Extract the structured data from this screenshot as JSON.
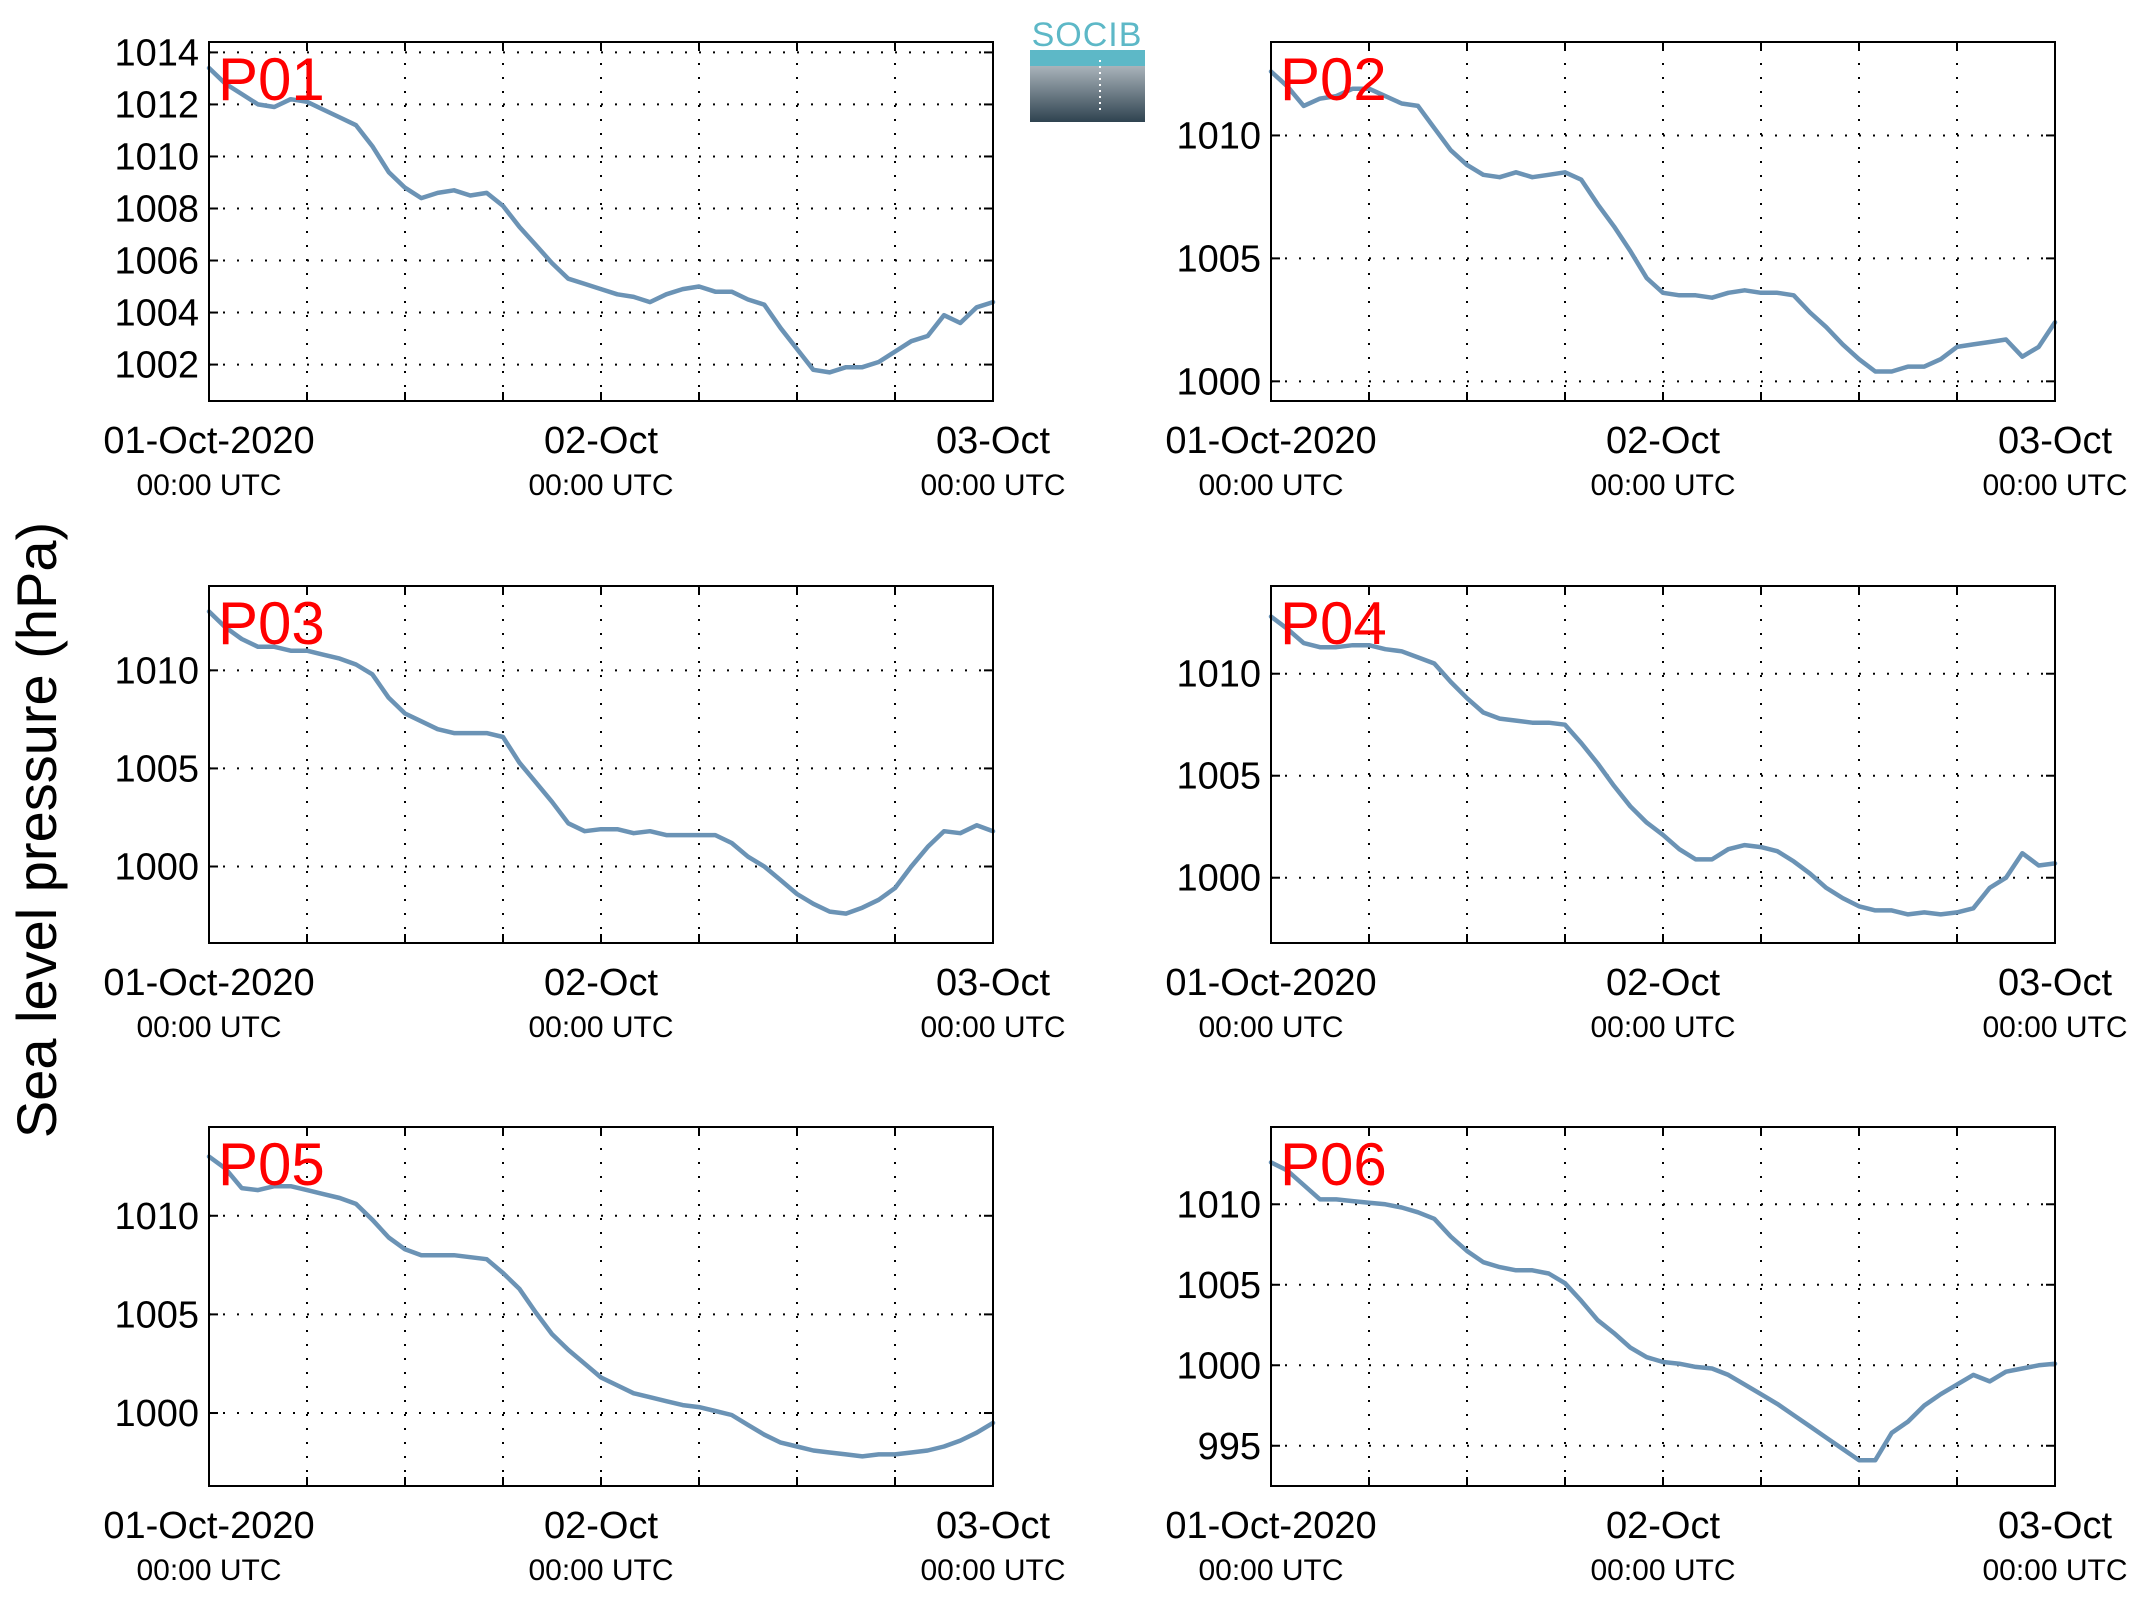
{
  "figure": {
    "ylabel": "Sea level pressure (hPa)",
    "logo": {
      "text": "SOCIB",
      "colors": {
        "text": "#5db8c7",
        "top": "#a9b3ba",
        "bottom": "#2f4350"
      }
    },
    "line_color": "#6b93b5",
    "label_color": "#ff0000"
  },
  "chart_data": [
    {
      "type": "line",
      "title": "P01",
      "x_ticks": [
        {
          "main": "01-Oct-2020",
          "sub": "00:00 UTC",
          "hour": 0
        },
        {
          "main": "02-Oct",
          "sub": "00:00 UTC",
          "hour": 24
        },
        {
          "main": "03-Oct",
          "sub": "00:00 UTC",
          "hour": 48
        }
      ],
      "x_gridlines_hours": [
        6,
        12,
        18,
        24,
        30,
        36,
        42
      ],
      "xlim_hours": [
        0,
        48
      ],
      "ylim": [
        1000.6,
        1014.4
      ],
      "yticks": [
        1002,
        1004,
        1006,
        1008,
        1010,
        1012,
        1014
      ],
      "x_hours": [
        0,
        1,
        2,
        3,
        4,
        5,
        6,
        7,
        8,
        9,
        10,
        11,
        12,
        13,
        14,
        15,
        16,
        17,
        18,
        19,
        20,
        21,
        22,
        23,
        24,
        25,
        26,
        27,
        28,
        29,
        30,
        31,
        32,
        33,
        34,
        35,
        36,
        37,
        38,
        39,
        40,
        41,
        42,
        43,
        44,
        45,
        46,
        47,
        48
      ],
      "values": [
        1013.4,
        1012.8,
        1012.4,
        1012.0,
        1011.9,
        1012.2,
        1012.1,
        1011.8,
        1011.5,
        1011.2,
        1010.4,
        1009.4,
        1008.8,
        1008.4,
        1008.6,
        1008.7,
        1008.5,
        1008.6,
        1008.1,
        1007.3,
        1006.6,
        1005.9,
        1005.3,
        1005.1,
        1004.9,
        1004.7,
        1004.6,
        1004.4,
        1004.7,
        1004.9,
        1005.0,
        1004.8,
        1004.8,
        1004.5,
        1004.3,
        1003.4,
        1002.6,
        1001.8,
        1001.7,
        1001.9,
        1001.9,
        1002.1,
        1002.5,
        1002.9,
        1003.1,
        1003.9,
        1003.6,
        1004.2,
        1004.4
      ]
    },
    {
      "type": "line",
      "title": "P02",
      "x_ticks": [
        {
          "main": "01-Oct-2020",
          "sub": "00:00 UTC",
          "hour": 0
        },
        {
          "main": "02-Oct",
          "sub": "00:00 UTC",
          "hour": 24
        },
        {
          "main": "03-Oct",
          "sub": "00:00 UTC",
          "hour": 48
        }
      ],
      "x_gridlines_hours": [
        6,
        12,
        18,
        24,
        30,
        36,
        42
      ],
      "xlim_hours": [
        0,
        48
      ],
      "ylim": [
        999.2,
        1013.8
      ],
      "yticks": [
        1000,
        1005,
        1010
      ],
      "x_hours": [
        0,
        1,
        2,
        3,
        4,
        5,
        6,
        7,
        8,
        9,
        10,
        11,
        12,
        13,
        14,
        15,
        16,
        17,
        18,
        19,
        20,
        21,
        22,
        23,
        24,
        25,
        26,
        27,
        28,
        29,
        30,
        31,
        32,
        33,
        34,
        35,
        36,
        37,
        38,
        39,
        40,
        41,
        42,
        43,
        44,
        45,
        46,
        47,
        48
      ],
      "values": [
        1012.6,
        1012.0,
        1011.2,
        1011.5,
        1011.6,
        1011.9,
        1011.9,
        1011.6,
        1011.3,
        1011.2,
        1010.3,
        1009.4,
        1008.8,
        1008.4,
        1008.3,
        1008.5,
        1008.3,
        1008.4,
        1008.5,
        1008.2,
        1007.2,
        1006.3,
        1005.3,
        1004.2,
        1003.6,
        1003.5,
        1003.5,
        1003.4,
        1003.6,
        1003.7,
        1003.6,
        1003.6,
        1003.5,
        1002.8,
        1002.2,
        1001.5,
        1000.9,
        1000.4,
        1000.4,
        1000.6,
        1000.6,
        1000.9,
        1001.4,
        1001.5,
        1001.6,
        1001.7,
        1001.0,
        1001.4,
        1002.4
      ]
    },
    {
      "type": "line",
      "title": "P03",
      "x_ticks": [
        {
          "main": "01-Oct-2020",
          "sub": "00:00 UTC",
          "hour": 0
        },
        {
          "main": "02-Oct",
          "sub": "00:00 UTC",
          "hour": 24
        },
        {
          "main": "03-Oct",
          "sub": "00:00 UTC",
          "hour": 48
        }
      ],
      "x_gridlines_hours": [
        6,
        12,
        18,
        24,
        30,
        36,
        42
      ],
      "xlim_hours": [
        0,
        48
      ],
      "ylim": [
        996.1,
        1014.3
      ],
      "yticks": [
        1000,
        1005,
        1010
      ],
      "x_hours": [
        0,
        1,
        2,
        3,
        4,
        5,
        6,
        7,
        8,
        9,
        10,
        11,
        12,
        13,
        14,
        15,
        16,
        17,
        18,
        19,
        20,
        21,
        22,
        23,
        24,
        25,
        26,
        27,
        28,
        29,
        30,
        31,
        32,
        33,
        34,
        35,
        36,
        37,
        38,
        39,
        40,
        41,
        42,
        43,
        44,
        45,
        46,
        47,
        48
      ],
      "values": [
        1013.0,
        1012.2,
        1011.6,
        1011.2,
        1011.2,
        1011.0,
        1011.0,
        1010.8,
        1010.6,
        1010.3,
        1009.8,
        1008.6,
        1007.8,
        1007.4,
        1007.0,
        1006.8,
        1006.8,
        1006.8,
        1006.6,
        1005.3,
        1004.3,
        1003.3,
        1002.2,
        1001.8,
        1001.9,
        1001.9,
        1001.7,
        1001.8,
        1001.6,
        1001.6,
        1001.6,
        1001.6,
        1001.2,
        1000.5,
        1000.0,
        999.3,
        998.6,
        998.1,
        997.7,
        997.6,
        997.9,
        998.3,
        998.9,
        1000.0,
        1001.0,
        1001.8,
        1001.7,
        1002.1,
        1001.8
      ]
    },
    {
      "type": "line",
      "title": "P04",
      "x_ticks": [
        {
          "main": "01-Oct-2020",
          "sub": "00:00 UTC",
          "hour": 0
        },
        {
          "main": "02-Oct",
          "sub": "00:00 UTC",
          "hour": 24
        },
        {
          "main": "03-Oct",
          "sub": "00:00 UTC",
          "hour": 48
        }
      ],
      "x_gridlines_hours": [
        6,
        12,
        18,
        24,
        30,
        36,
        42
      ],
      "xlim_hours": [
        0,
        48
      ],
      "ylim": [
        996.8,
        1014.3
      ],
      "yticks": [
        1000,
        1005,
        1010
      ],
      "x_hours": [
        0,
        1,
        2,
        3,
        4,
        5,
        6,
        7,
        8,
        9,
        10,
        11,
        12,
        13,
        14,
        15,
        16,
        17,
        18,
        19,
        20,
        21,
        22,
        23,
        24,
        25,
        26,
        27,
        28,
        29,
        30,
        31,
        32,
        33,
        34,
        35,
        36,
        37,
        38,
        39,
        40,
        41,
        42,
        43,
        44,
        45,
        46,
        47,
        48
      ],
      "values": [
        1012.8,
        1012.2,
        1011.5,
        1011.3,
        1011.3,
        1011.4,
        1011.4,
        1011.2,
        1011.1,
        1010.8,
        1010.5,
        1009.6,
        1008.8,
        1008.1,
        1007.8,
        1007.7,
        1007.6,
        1007.6,
        1007.5,
        1006.6,
        1005.6,
        1004.5,
        1003.5,
        1002.7,
        1002.1,
        1001.4,
        1000.9,
        1000.9,
        1001.4,
        1001.6,
        1001.5,
        1001.3,
        1000.8,
        1000.2,
        999.5,
        999.0,
        998.6,
        998.4,
        998.4,
        998.2,
        998.3,
        998.2,
        998.3,
        998.5,
        999.5,
        1000.0,
        1001.2,
        1000.6,
        1000.7
      ]
    },
    {
      "type": "line",
      "title": "P05",
      "x_ticks": [
        {
          "main": "01-Oct-2020",
          "sub": "00:00 UTC",
          "hour": 0
        },
        {
          "main": "02-Oct",
          "sub": "00:00 UTC",
          "hour": 24
        },
        {
          "main": "03-Oct",
          "sub": "00:00 UTC",
          "hour": 48
        }
      ],
      "x_gridlines_hours": [
        6,
        12,
        18,
        24,
        30,
        36,
        42
      ],
      "xlim_hours": [
        0,
        48
      ],
      "ylim": [
        996.3,
        1014.5
      ],
      "yticks": [
        1000,
        1005,
        1010
      ],
      "x_hours": [
        0,
        1,
        2,
        3,
        4,
        5,
        6,
        7,
        8,
        9,
        10,
        11,
        12,
        13,
        14,
        15,
        16,
        17,
        18,
        19,
        20,
        21,
        22,
        23,
        24,
        25,
        26,
        27,
        28,
        29,
        30,
        31,
        32,
        33,
        34,
        35,
        36,
        37,
        38,
        39,
        40,
        41,
        42,
        43,
        44,
        45,
        46,
        47,
        48
      ],
      "values": [
        1013.0,
        1012.4,
        1011.4,
        1011.3,
        1011.5,
        1011.5,
        1011.3,
        1011.1,
        1010.9,
        1010.6,
        1009.8,
        1008.9,
        1008.3,
        1008.0,
        1008.0,
        1008.0,
        1007.9,
        1007.8,
        1007.1,
        1006.3,
        1005.1,
        1004.0,
        1003.2,
        1002.5,
        1001.8,
        1001.4,
        1001.0,
        1000.8,
        1000.6,
        1000.4,
        1000.3,
        1000.1,
        999.9,
        999.4,
        998.9,
        998.5,
        998.3,
        998.1,
        998.0,
        997.9,
        997.8,
        997.9,
        997.9,
        998.0,
        998.1,
        998.3,
        998.6,
        999.0,
        999.5
      ]
    },
    {
      "type": "line",
      "title": "P06",
      "x_ticks": [
        {
          "main": "01-Oct-2020",
          "sub": "00:00 UTC",
          "hour": 0
        },
        {
          "main": "02-Oct",
          "sub": "00:00 UTC",
          "hour": 24
        },
        {
          "main": "03-Oct",
          "sub": "00:00 UTC",
          "hour": 48
        }
      ],
      "x_gridlines_hours": [
        6,
        12,
        18,
        24,
        30,
        36,
        42
      ],
      "xlim_hours": [
        0,
        48
      ],
      "ylim": [
        992.5,
        1014.8
      ],
      "yticks": [
        995,
        1000,
        1005,
        1010
      ],
      "x_hours": [
        0,
        1,
        2,
        3,
        4,
        5,
        6,
        7,
        8,
        9,
        10,
        11,
        12,
        13,
        14,
        15,
        16,
        17,
        18,
        19,
        20,
        21,
        22,
        23,
        24,
        25,
        26,
        27,
        28,
        29,
        30,
        31,
        32,
        33,
        34,
        35,
        36,
        37,
        38,
        39,
        40,
        41,
        42,
        43,
        44,
        45,
        46,
        47,
        48
      ],
      "values": [
        1012.6,
        1012.1,
        1011.2,
        1010.3,
        1010.3,
        1010.2,
        1010.1,
        1010.0,
        1009.8,
        1009.5,
        1009.1,
        1008.0,
        1007.1,
        1006.4,
        1006.1,
        1005.9,
        1005.9,
        1005.7,
        1005.1,
        1004.0,
        1002.8,
        1002.0,
        1001.1,
        1000.5,
        1000.2,
        1000.1,
        999.9,
        999.8,
        999.4,
        998.8,
        998.2,
        997.6,
        996.9,
        996.2,
        995.5,
        994.8,
        994.1,
        994.1,
        995.8,
        996.5,
        997.5,
        998.2,
        998.8,
        999.4,
        999.0,
        999.6,
        999.8,
        1000.0,
        1000.1
      ]
    }
  ]
}
